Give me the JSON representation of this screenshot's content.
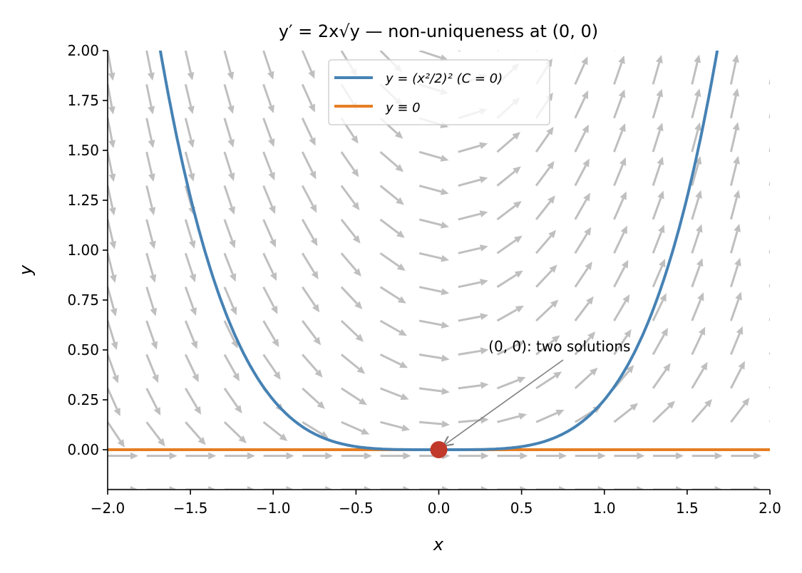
{
  "chart_data": {
    "type": "line",
    "title": "y′ = 2x√y — non-uniqueness at (0, 0)",
    "xlabel": "x",
    "ylabel": "y",
    "xlim": [
      -2.0,
      2.0
    ],
    "ylim": [
      -0.2,
      2.0
    ],
    "xticks": [
      "−2.0",
      "−1.5",
      "−1.0",
      "−0.5",
      "0.0",
      "0.5",
      "1.0",
      "1.5",
      "2.0"
    ],
    "xtick_values": [
      -2.0,
      -1.5,
      -1.0,
      -0.5,
      0.0,
      0.5,
      1.0,
      1.5,
      2.0
    ],
    "yticks": [
      "0.00",
      "0.25",
      "0.50",
      "0.75",
      "1.00",
      "1.25",
      "1.50",
      "1.75",
      "2.00"
    ],
    "ytick_values": [
      0,
      0.25,
      0.5,
      0.75,
      1.0,
      1.25,
      1.5,
      1.75,
      2.0
    ],
    "grid": false,
    "legend_position": "top-center",
    "series": [
      {
        "name": "y = (x²/2)² (C = 0)",
        "formula": "y = x^4/4",
        "color": "#4682b4"
      },
      {
        "name": "y ≡ 0",
        "formula": "y = 0",
        "color": "#e67e22"
      }
    ],
    "slope_field": {
      "equation": "dy/dx = 2x*sqrt(y)",
      "x_count": 18,
      "y_count": 14,
      "color": "#bfbfbf"
    },
    "point": {
      "x": 0,
      "y": 0,
      "color": "#c0392b"
    },
    "annotation": {
      "text": "(0, 0): two solutions",
      "text_x": 0.3,
      "text_y": 0.5,
      "arrow_to": [
        0,
        0
      ]
    }
  }
}
